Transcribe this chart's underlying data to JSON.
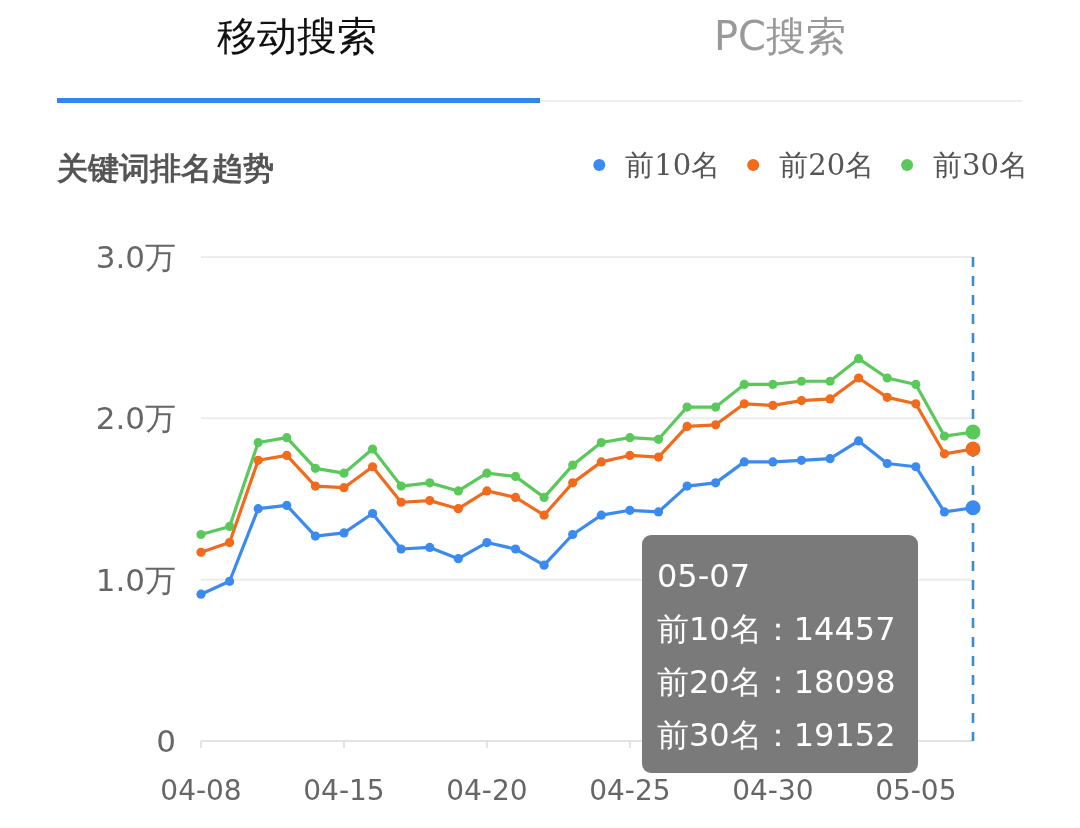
{
  "chart_data": {
    "type": "line",
    "title": "关键词排名趋势",
    "annotations": [
      "移动搜索",
      "PC搜索",
      "前10名：14457\n前20名：18098\n前30名：19152"
    ],
    "categories": [
      "04-08",
      null,
      null,
      null,
      null,
      "04-15",
      null,
      null,
      null,
      null,
      "04-20",
      null,
      null,
      null,
      null,
      "04-25",
      null,
      null,
      null,
      null,
      "04-30",
      null,
      null,
      null,
      null,
      "05-05",
      null,
      null
    ],
    "series": [
      {
        "name": "前10名",
        "color": "#3b8af0",
        "values": [
          0.91,
          0.99,
          1.44,
          1.46,
          1.27,
          1.29,
          1.41,
          1.19,
          1.2,
          1.13,
          1.23,
          1.19,
          1.09,
          1.28,
          1.4,
          1.43,
          1.42,
          1.58,
          1.6,
          1.73,
          1.73,
          1.74,
          1.75,
          1.86,
          1.72,
          1.7,
          1.42,
          1.4457
        ]
      },
      {
        "name": "前20名",
        "color": "#f26a1b",
        "values": [
          1.17,
          1.23,
          1.74,
          1.77,
          1.58,
          1.57,
          1.7,
          1.48,
          1.49,
          1.44,
          1.55,
          1.51,
          1.4,
          1.6,
          1.73,
          1.77,
          1.76,
          1.95,
          1.96,
          2.09,
          2.08,
          2.11,
          2.12,
          2.25,
          2.13,
          2.09,
          1.78,
          1.8098
        ]
      },
      {
        "name": "前30名",
        "color": "#5bc85c",
        "values": [
          1.28,
          1.33,
          1.85,
          1.88,
          1.69,
          1.66,
          1.81,
          1.58,
          1.6,
          1.55,
          1.66,
          1.64,
          1.51,
          1.71,
          1.85,
          1.88,
          1.87,
          2.07,
          2.07,
          2.21,
          2.21,
          2.23,
          2.23,
          2.37,
          2.25,
          2.21,
          1.89,
          1.9152
        ]
      }
    ],
    "ylim": [
      0,
      3
    ],
    "yticks": [
      0,
      {
        "value": 1,
        "label": "1.0万"
      },
      {
        "value": 2,
        "label": "2.0万"
      },
      {
        "value": 3,
        "label": "3.0万"
      }
    ],
    "grid": "y",
    "legend": "top right",
    "marker": "circle",
    "line_style": "solid",
    "ref_lines": [
      {
        "axis": "x",
        "value": "05-07",
        "color": "#3b8bd0",
        "line_style": "dashed"
      }
    ]
  }
}
